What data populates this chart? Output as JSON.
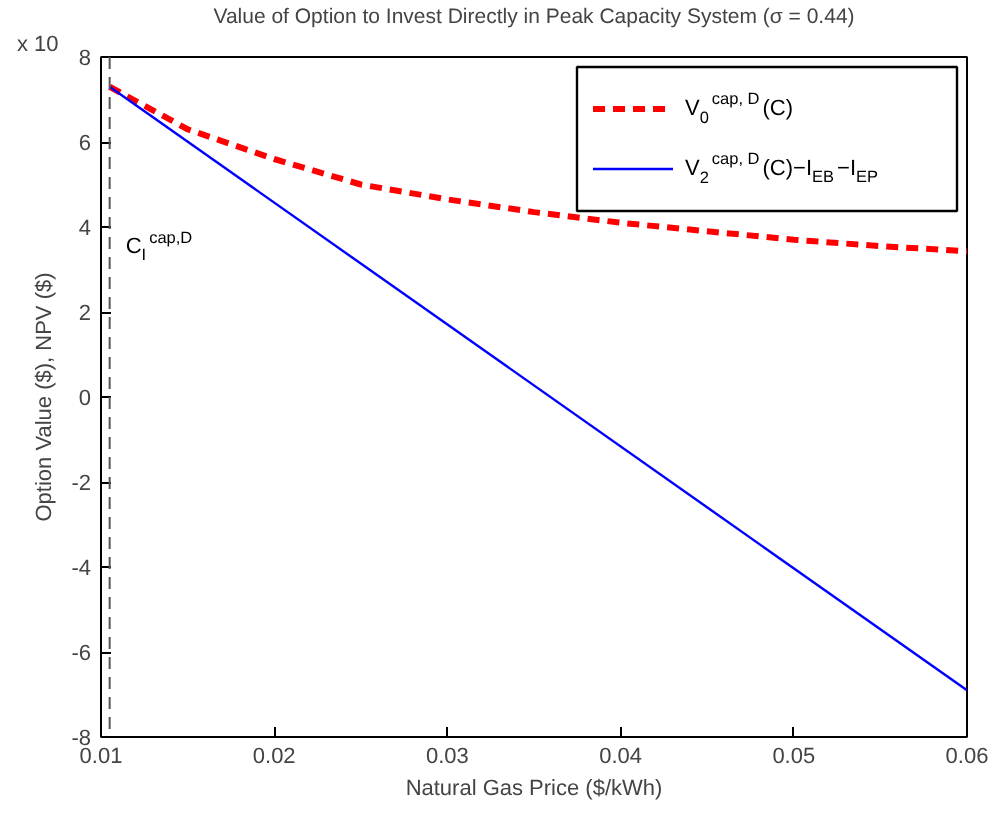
{
  "chart_data": {
    "type": "line",
    "title": "Value of Option to Invest Directly in Peak Capacity System (σ = 0.44)",
    "xlabel": "Natural Gas Price ($/kWh)",
    "ylabel": "Option Value ($), NPV ($)",
    "annotations": [
      "x 10"
    ],
    "series": [
      {
        "name": "V$_{0}$$^{cap, D}$(C)",
        "color": "#ff0000",
        "line_style": "dashed",
        "x": [
          0.0105,
          0.015,
          0.02,
          0.025,
          0.03,
          0.035,
          0.04,
          0.045,
          0.05,
          0.055,
          0.06
        ],
        "values": [
          7.3,
          6.3,
          5.6,
          5.0,
          4.65,
          4.35,
          4.1,
          3.9,
          3.7,
          3.55,
          3.43
        ]
      },
      {
        "name": "V$_{2}$$^{cap, D}$(C)−I$_{EB}$−I$_{EP}$",
        "color": "#0000ff",
        "line_style": "solid",
        "x": [
          0.0105,
          0.06
        ],
        "values": [
          7.3,
          -6.9
        ]
      }
    ],
    "xlim": [
      0.01,
      0.06
    ],
    "xticks": [
      0.01,
      0.02,
      0.03,
      0.04,
      0.05,
      0.06
    ],
    "ylim": [
      -8,
      8
    ],
    "yticks": [
      -8,
      -6,
      -4,
      -2,
      0,
      2,
      4,
      6,
      8
    ],
    "ref_lines": [
      {
        "axis": "x",
        "value": 0.0105,
        "label": "C$_{I}$$^{cap,D}$",
        "color": "#555555",
        "line_style": "dashed"
      }
    ],
    "grid": false,
    "legend": "top right"
  }
}
